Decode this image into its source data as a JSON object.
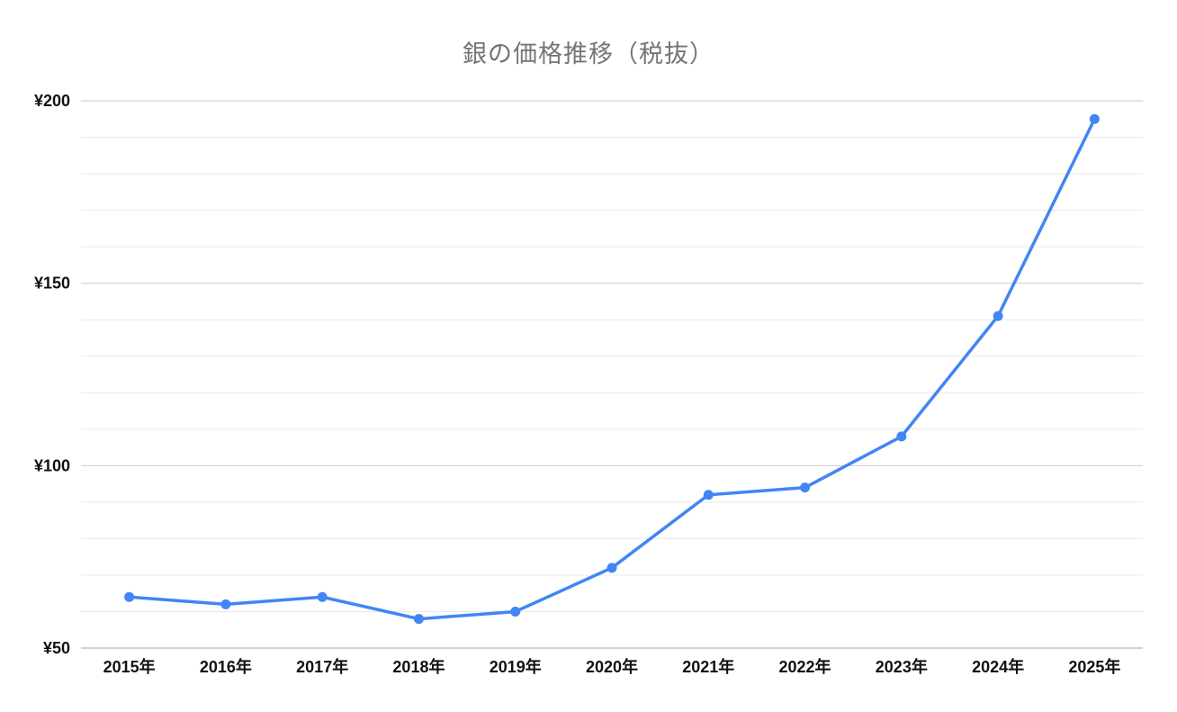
{
  "chart": {
    "title": "銀の価格推移（税抜）"
  },
  "chart_data": {
    "type": "line",
    "title": "銀の価格推移（税抜）",
    "categories": [
      "2015年",
      "2016年",
      "2017年",
      "2018年",
      "2019年",
      "2020年",
      "2021年",
      "2022年",
      "2023年",
      "2024年",
      "2025年"
    ],
    "values": [
      64,
      62,
      64,
      58,
      60,
      72,
      92,
      94,
      108,
      141,
      195
    ],
    "xlabel": "",
    "ylabel": "",
    "ylim": [
      50,
      200
    ],
    "yticks": [
      50,
      100,
      150,
      200
    ],
    "ytick_labels": [
      "¥50",
      "¥100",
      "¥150",
      "¥200"
    ],
    "minor_grid_step": 10,
    "grid": true,
    "legend_position": "none",
    "colors": {
      "line": "#4285f4",
      "point": "#4285f4",
      "title": "#757575",
      "tick_label": "#111111",
      "grid_minor": "#e9e9e9",
      "grid_major": "#cdcdcd",
      "axis_line": "#a6a6a6",
      "background": "#ffffff"
    }
  }
}
